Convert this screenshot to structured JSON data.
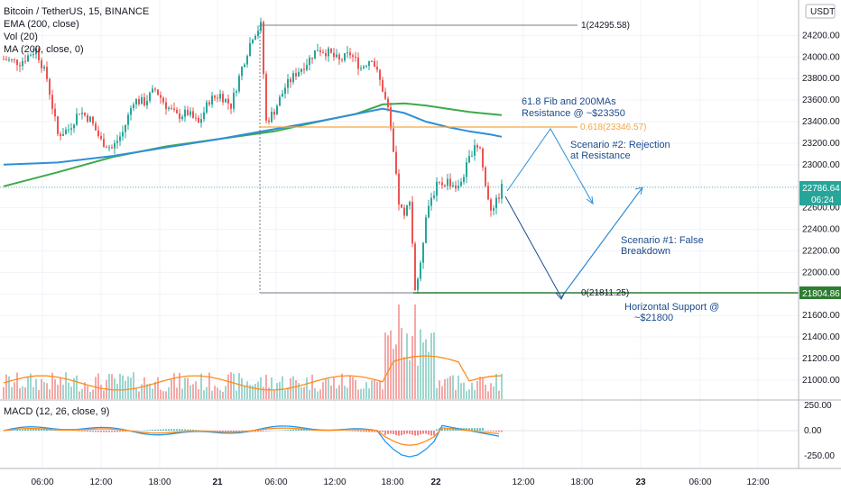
{
  "legend": {
    "symbol": "Bitcoin / TetherUS, 15, BINANCE",
    "ema": "EMA (200, close)",
    "vol": "Vol (20)",
    "ma": "MA (200, close, 0)"
  },
  "macd_label": "MACD (12, 26, close, 9)",
  "currency": "USDT",
  "price_badge": {
    "last": "22786.64",
    "countdown": "06:24",
    "support": "21804.86"
  },
  "fib": {
    "top": "1(24295.58)",
    "mid": "0.618(23346.57)",
    "bottom": "0(21811.25)"
  },
  "annotations": {
    "resistance_1": "61.8 Fib and 200MAs",
    "resistance_2": "Resistance @ ~$23350",
    "scenario2_1": "Scenario #2: Rejection",
    "scenario2_2": "at Resistance",
    "scenario1_1": "Scenario #1: False",
    "scenario1_2": "Breakdown",
    "support_1": "Horizontal Support @",
    "support_2": "~$21800"
  },
  "colors": {
    "up": "#26a69a",
    "down": "#ef5350",
    "ema": "#2f8fd8",
    "ma": "#3faa48",
    "fib_mid": "#f5a742",
    "fib_line": "#787b86",
    "support": "#2e7d32",
    "scenario": "#2f8fd8",
    "arrow_dark": "#1a4b8c",
    "macd": "#2196f3",
    "signal": "#ff8c1a"
  },
  "chart_data": {
    "type": "candlestick",
    "title": "Bitcoin / TetherUS, 15, BINANCE",
    "time_labels": [
      "06:00",
      "12:00",
      "18:00",
      "21",
      "06:00",
      "12:00",
      "18:00",
      "22",
      "12:00",
      "18:00",
      "23",
      "06:00",
      "12:00"
    ],
    "price_ticks": [
      21000,
      21200,
      21400,
      21600,
      21800,
      22000,
      22200,
      22400,
      22600,
      22800,
      23000,
      23200,
      23400,
      23600,
      23800,
      24000,
      24200
    ],
    "price_tick_labels": [
      "21000.00",
      "21200.00",
      "21400.00",
      "21600.00",
      "21800.00",
      "22000.00",
      "22200.00",
      "22400.00",
      "22600.00",
      "22800.00",
      "23000.00",
      "23200.00",
      "23400.00",
      "23600.00",
      "23800.00",
      "24000.00",
      "24200.00"
    ],
    "macd_ticks": [
      250,
      0,
      -250
    ],
    "macd_tick_labels": [
      "250.00",
      "0.00",
      "-250.00"
    ],
    "ylim": [
      20850,
      24420
    ],
    "last_price": 22786.64,
    "support_level": 21804.86,
    "fib_levels": [
      24295.58,
      23346.57,
      21811.25
    ],
    "price_path": [
      [
        0,
        23980
      ],
      [
        6,
        23950
      ],
      [
        12,
        24070
      ],
      [
        16,
        23800
      ],
      [
        20,
        23280
      ],
      [
        24,
        23330
      ],
      [
        28,
        23500
      ],
      [
        32,
        23420
      ],
      [
        36,
        23220
      ],
      [
        40,
        23150
      ],
      [
        44,
        23300
      ],
      [
        48,
        23600
      ],
      [
        52,
        23580
      ],
      [
        56,
        23700
      ],
      [
        60,
        23550
      ],
      [
        64,
        23450
      ],
      [
        68,
        23480
      ],
      [
        72,
        23380
      ],
      [
        76,
        23600
      ],
      [
        80,
        23650
      ],
      [
        84,
        23550
      ],
      [
        88,
        23900
      ],
      [
        92,
        24200
      ],
      [
        95,
        24290
      ],
      [
        97,
        23400
      ],
      [
        100,
        23500
      ],
      [
        104,
        23720
      ],
      [
        108,
        23850
      ],
      [
        112,
        23950
      ],
      [
        116,
        24080
      ],
      [
        120,
        24040
      ],
      [
        124,
        23960
      ],
      [
        128,
        24030
      ],
      [
        132,
        23900
      ],
      [
        136,
        24000
      ],
      [
        140,
        23700
      ],
      [
        142,
        23500
      ],
      [
        144,
        23100
      ],
      [
        146,
        22650
      ],
      [
        148,
        22500
      ],
      [
        150,
        22700
      ],
      [
        152,
        21850
      ],
      [
        154,
        22050
      ],
      [
        156,
        22550
      ],
      [
        158,
        22700
      ],
      [
        160,
        22800
      ],
      [
        164,
        22850
      ],
      [
        168,
        22780
      ],
      [
        172,
        23050
      ],
      [
        174,
        23200
      ],
      [
        176,
        23150
      ],
      [
        178,
        22800
      ],
      [
        180,
        22600
      ],
      [
        182,
        22650
      ],
      [
        184,
        22786
      ]
    ],
    "ema200": [
      [
        0,
        23000
      ],
      [
        20,
        23020
      ],
      [
        40,
        23080
      ],
      [
        60,
        23160
      ],
      [
        80,
        23240
      ],
      [
        100,
        23330
      ],
      [
        120,
        23420
      ],
      [
        130,
        23470
      ],
      [
        140,
        23520
      ],
      [
        148,
        23480
      ],
      [
        156,
        23400
      ],
      [
        164,
        23350
      ],
      [
        172,
        23310
      ],
      [
        180,
        23280
      ],
      [
        184,
        23260
      ]
    ],
    "ma200": [
      [
        0,
        22800
      ],
      [
        20,
        22930
      ],
      [
        40,
        23070
      ],
      [
        60,
        23170
      ],
      [
        80,
        23240
      ],
      [
        100,
        23310
      ],
      [
        120,
        23420
      ],
      [
        130,
        23470
      ],
      [
        140,
        23560
      ],
      [
        148,
        23570
      ],
      [
        156,
        23550
      ],
      [
        164,
        23520
      ],
      [
        172,
        23490
      ],
      [
        180,
        23470
      ],
      [
        184,
        23460
      ]
    ]
  }
}
